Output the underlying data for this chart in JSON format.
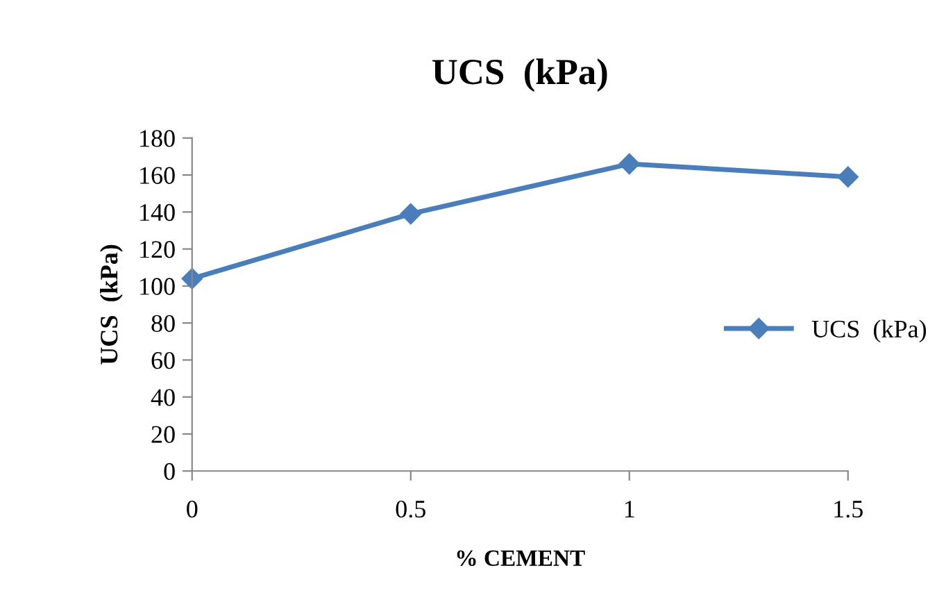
{
  "chart_data": {
    "type": "line",
    "title": "UCS  (kPa)",
    "xlabel": "% CEMENT",
    "ylabel": "UCS  (kPa)",
    "x": [
      0,
      0.5,
      1,
      1.5
    ],
    "series": [
      {
        "name": "UCS  (kPa)",
        "color": "#4a7ebb",
        "values": [
          104,
          139,
          166,
          159
        ]
      }
    ],
    "xlim": [
      0,
      1.5
    ],
    "xticks": [
      0,
      0.5,
      1,
      1.5
    ],
    "ylim": [
      0,
      180
    ],
    "yticks": [
      0,
      20,
      40,
      60,
      80,
      100,
      120,
      140,
      160,
      180
    ],
    "marker": "diamond",
    "line_style": "solid",
    "grid": false,
    "legend": "right"
  }
}
